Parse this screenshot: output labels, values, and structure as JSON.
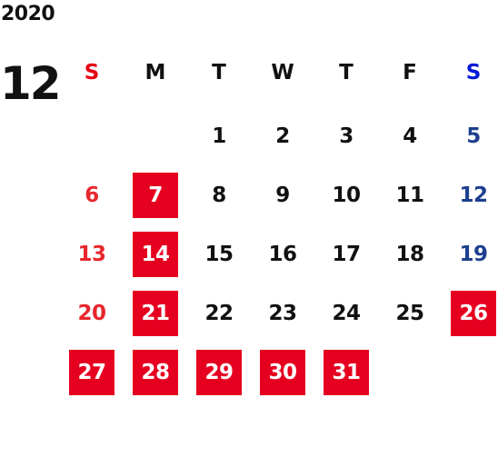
{
  "calendar": {
    "year": "2020",
    "month": "12",
    "weekdays": [
      {
        "label": "S",
        "color": "#e60012"
      },
      {
        "label": "M",
        "color": "#111111"
      },
      {
        "label": "T",
        "color": "#111111"
      },
      {
        "label": "W",
        "color": "#111111"
      },
      {
        "label": "T",
        "color": "#111111"
      },
      {
        "label": "F",
        "color": "#111111"
      },
      {
        "label": "S",
        "color": "#0019d6"
      }
    ],
    "first_weekday_index": 2,
    "days": [
      {
        "day": "1",
        "type": "weekday"
      },
      {
        "day": "2",
        "type": "weekday"
      },
      {
        "day": "3",
        "type": "weekday"
      },
      {
        "day": "4",
        "type": "weekday"
      },
      {
        "day": "5",
        "type": "saturday"
      },
      {
        "day": "6",
        "type": "sunday"
      },
      {
        "day": "7",
        "type": "holiday"
      },
      {
        "day": "8",
        "type": "weekday"
      },
      {
        "day": "9",
        "type": "weekday"
      },
      {
        "day": "10",
        "type": "weekday"
      },
      {
        "day": "11",
        "type": "weekday"
      },
      {
        "day": "12",
        "type": "saturday"
      },
      {
        "day": "13",
        "type": "sunday"
      },
      {
        "day": "14",
        "type": "holiday"
      },
      {
        "day": "15",
        "type": "weekday"
      },
      {
        "day": "16",
        "type": "weekday"
      },
      {
        "day": "17",
        "type": "weekday"
      },
      {
        "day": "18",
        "type": "weekday"
      },
      {
        "day": "19",
        "type": "saturday"
      },
      {
        "day": "20",
        "type": "sunday"
      },
      {
        "day": "21",
        "type": "holiday"
      },
      {
        "day": "22",
        "type": "weekday"
      },
      {
        "day": "23",
        "type": "weekday"
      },
      {
        "day": "24",
        "type": "weekday"
      },
      {
        "day": "25",
        "type": "weekday"
      },
      {
        "day": "26",
        "type": "holiday"
      },
      {
        "day": "27",
        "type": "holiday"
      },
      {
        "day": "28",
        "type": "holiday"
      },
      {
        "day": "29",
        "type": "holiday"
      },
      {
        "day": "30",
        "type": "holiday"
      },
      {
        "day": "31",
        "type": "holiday"
      }
    ],
    "colors": {
      "weekday": "#111111",
      "sunday": "#e8262d",
      "saturday": "#1e3f8f",
      "holiday_bg": "#e60020",
      "holiday_text": "#ffffff"
    }
  }
}
